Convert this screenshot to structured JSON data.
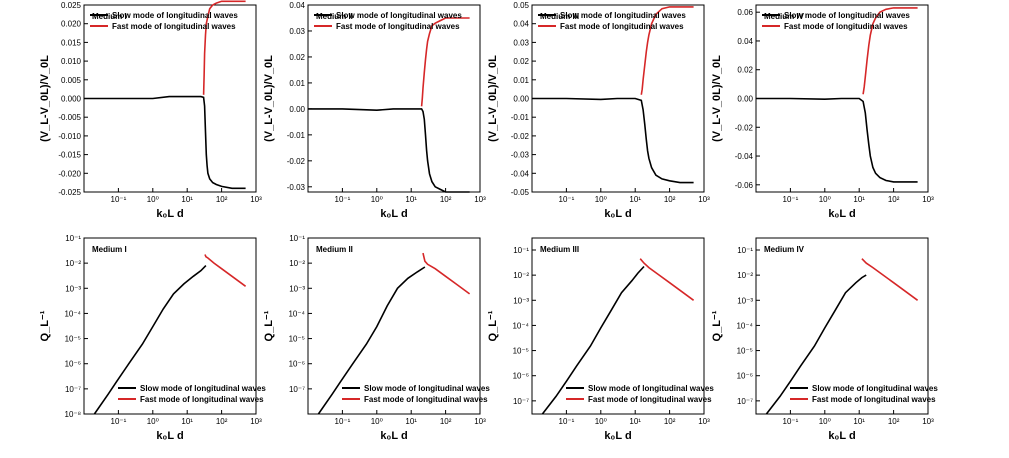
{
  "figure": {
    "x_axis_label": "k₀L d",
    "top_y_label": "(V_L-V_0L)/V_0L",
    "bottom_y_label": "Q_L⁻¹"
  },
  "legend": {
    "slow": "Slow mode of longitudinal waves",
    "fast": "Fast mode of longitudinal waves",
    "slow_color": "#000000",
    "fast_color": "#d62728"
  },
  "chart_data": [
    {
      "type": "line",
      "panel": "top-1",
      "medium": "Medium I",
      "xscale": "log",
      "xlim": [
        0.01,
        1000
      ],
      "xticks": [
        {
          "v": 0.1,
          "label": "10⁻¹"
        },
        {
          "v": 1,
          "label": "10⁰"
        },
        {
          "v": 10,
          "label": "10¹"
        },
        {
          "v": 100,
          "label": "10²"
        },
        {
          "v": 1000,
          "label": "10³"
        }
      ],
      "ylim": [
        -0.025,
        0.025
      ],
      "yticks": [
        "0.025",
        "0.020",
        "0.015",
        "0.010",
        "0.005",
        "0.000",
        "-0.005",
        "-0.010",
        "-0.015",
        "-0.020",
        "-0.025"
      ],
      "legend_position": "top-right",
      "series": [
        {
          "name": "Slow mode of longitudinal waves",
          "x": [
            0.01,
            0.1,
            1,
            3,
            10,
            25,
            30,
            32,
            34,
            36,
            38,
            40,
            45,
            55,
            70,
            100,
            200,
            500
          ],
          "y": [
            0,
            0,
            0,
            0.0005,
            0.0005,
            0.0005,
            0.0003,
            -0.002,
            -0.009,
            -0.015,
            -0.018,
            -0.02,
            -0.0215,
            -0.0225,
            -0.023,
            -0.0235,
            -0.024,
            -0.024
          ]
        },
        {
          "name": "Fast mode of longitudinal waves",
          "x": [
            30,
            31,
            32,
            34,
            36,
            40,
            45,
            55,
            70,
            100,
            200,
            500
          ],
          "y": [
            0.001,
            0.006,
            0.012,
            0.017,
            0.02,
            0.022,
            0.024,
            0.025,
            0.0255,
            0.026,
            0.026,
            0.026
          ]
        }
      ]
    },
    {
      "type": "line",
      "panel": "top-2",
      "medium": "Medium II",
      "xscale": "log",
      "xlim": [
        0.01,
        1000
      ],
      "xticks": [
        {
          "v": 0.1,
          "label": "10⁻¹"
        },
        {
          "v": 1,
          "label": "10⁰"
        },
        {
          "v": 10,
          "label": "10¹"
        },
        {
          "v": 100,
          "label": "10²"
        },
        {
          "v": 1000,
          "label": "10³"
        }
      ],
      "ylim": [
        -0.032,
        0.04
      ],
      "yticks": [
        "0.04",
        "0.03",
        "0.02",
        "0.01",
        "0.00",
        "-0.01",
        "-0.02",
        "-0.03"
      ],
      "legend_position": "top-right",
      "series": [
        {
          "name": "Slow mode of longitudinal waves",
          "x": [
            0.01,
            0.1,
            1,
            3,
            10,
            20,
            22,
            24,
            26,
            28,
            30,
            34,
            40,
            50,
            70,
            100,
            200,
            500
          ],
          "y": [
            0,
            0,
            -0.0005,
            0,
            0,
            0,
            -0.001,
            -0.004,
            -0.01,
            -0.016,
            -0.02,
            -0.025,
            -0.028,
            -0.03,
            -0.031,
            -0.032,
            -0.032,
            -0.032
          ]
        },
        {
          "name": "Fast mode of longitudinal waves",
          "x": [
            20,
            21,
            22,
            24,
            26,
            28,
            30,
            34,
            40,
            50,
            70,
            100,
            200,
            500
          ],
          "y": [
            0.001,
            0.004,
            0.008,
            0.014,
            0.019,
            0.023,
            0.026,
            0.029,
            0.032,
            0.033,
            0.034,
            0.035,
            0.035,
            0.035
          ]
        }
      ]
    },
    {
      "type": "line",
      "panel": "top-3",
      "medium": "Medium III",
      "xscale": "log",
      "xlim": [
        0.01,
        1000
      ],
      "xticks": [
        {
          "v": 0.1,
          "label": "10⁻¹"
        },
        {
          "v": 1,
          "label": "10⁰"
        },
        {
          "v": 10,
          "label": "10¹"
        },
        {
          "v": 100,
          "label": "10²"
        },
        {
          "v": 1000,
          "label": "10³"
        }
      ],
      "ylim": [
        -0.05,
        0.05
      ],
      "yticks": [
        "0.05",
        "0.04",
        "0.03",
        "0.02",
        "0.01",
        "0.00",
        "-0.01",
        "-0.02",
        "-0.03",
        "-0.04",
        "-0.05"
      ],
      "legend_position": "top-right",
      "series": [
        {
          "name": "Slow mode of longitudinal waves",
          "x": [
            0.01,
            0.1,
            1,
            3,
            10,
            15,
            17,
            19,
            21,
            23,
            25,
            30,
            40,
            60,
            100,
            200,
            500
          ],
          "y": [
            0,
            0,
            -0.0005,
            0,
            0,
            -0.001,
            -0.006,
            -0.014,
            -0.022,
            -0.028,
            -0.032,
            -0.037,
            -0.041,
            -0.043,
            -0.044,
            -0.045,
            -0.045
          ]
        },
        {
          "name": "Fast mode of longitudinal waves",
          "x": [
            15,
            16,
            17,
            19,
            21,
            23,
            25,
            30,
            40,
            60,
            100,
            200,
            500
          ],
          "y": [
            0.002,
            0.005,
            0.01,
            0.018,
            0.025,
            0.03,
            0.034,
            0.04,
            0.045,
            0.048,
            0.049,
            0.049,
            0.049
          ]
        }
      ]
    },
    {
      "type": "line",
      "panel": "top-4",
      "medium": "Medium IV",
      "xscale": "log",
      "xlim": [
        0.01,
        1000
      ],
      "xticks": [
        {
          "v": 0.1,
          "label": "10⁻¹"
        },
        {
          "v": 1,
          "label": "10⁰"
        },
        {
          "v": 10,
          "label": "10¹"
        },
        {
          "v": 100,
          "label": "10²"
        },
        {
          "v": 1000,
          "label": "10³"
        }
      ],
      "ylim": [
        -0.065,
        0.065
      ],
      "yticks": [
        "0.06",
        "0.04",
        "0.02",
        "0.00",
        "-0.02",
        "-0.04",
        "-0.06"
      ],
      "legend_position": "top-right",
      "series": [
        {
          "name": "Slow mode of longitudinal waves",
          "x": [
            0.01,
            0.1,
            1,
            3,
            10,
            13,
            15,
            17,
            19,
            21,
            25,
            30,
            40,
            60,
            100,
            200,
            500
          ],
          "y": [
            0,
            0,
            -0.0005,
            0,
            0,
            -0.002,
            -0.01,
            -0.022,
            -0.032,
            -0.04,
            -0.048,
            -0.052,
            -0.055,
            -0.057,
            -0.058,
            -0.058,
            -0.058
          ]
        },
        {
          "name": "Fast mode of longitudinal waves",
          "x": [
            13,
            14,
            15,
            17,
            19,
            21,
            25,
            30,
            40,
            60,
            100,
            200,
            500
          ],
          "y": [
            0.003,
            0.008,
            0.015,
            0.027,
            0.037,
            0.044,
            0.052,
            0.056,
            0.06,
            0.062,
            0.063,
            0.063,
            0.063
          ]
        }
      ]
    },
    {
      "type": "line",
      "panel": "bottom-1",
      "medium": "Medium I",
      "xscale": "log",
      "yscale": "log",
      "xlim": [
        0.01,
        1000
      ],
      "ylim": [
        1e-08,
        0.1
      ],
      "xticks": [
        {
          "v": 0.1,
          "label": "10⁻¹"
        },
        {
          "v": 1,
          "label": "10⁰"
        },
        {
          "v": 10,
          "label": "10¹"
        },
        {
          "v": 100,
          "label": "10²"
        },
        {
          "v": 1000,
          "label": "10³"
        }
      ],
      "yticks": [
        {
          "v": 0.1,
          "label": "10⁻¹"
        },
        {
          "v": 0.01,
          "label": "10⁻²"
        },
        {
          "v": 0.001,
          "label": "10⁻³"
        },
        {
          "v": 0.0001,
          "label": "10⁻⁴"
        },
        {
          "v": 1e-05,
          "label": "10⁻⁵"
        },
        {
          "v": 1e-06,
          "label": "10⁻⁶"
        },
        {
          "v": 1e-07,
          "label": "10⁻⁷"
        },
        {
          "v": 1e-08,
          "label": "10⁻⁸"
        }
      ],
      "legend_position": "bottom-right",
      "series": [
        {
          "name": "Slow mode of longitudinal waves",
          "x": [
            0.02,
            0.05,
            0.1,
            0.2,
            0.5,
            1,
            2,
            4,
            8,
            15,
            25,
            35
          ],
          "y": [
            1e-08,
            6e-08,
            2.5e-07,
            1e-06,
            6e-06,
            3e-05,
            0.00015,
            0.0006,
            0.0015,
            0.003,
            0.005,
            0.008
          ]
        },
        {
          "name": "Fast mode of longitudinal waves",
          "x": [
            33,
            35,
            40,
            60,
            100,
            200,
            500
          ],
          "y": [
            0.022,
            0.018,
            0.016,
            0.01,
            0.006,
            0.003,
            0.0012
          ]
        }
      ]
    },
    {
      "type": "line",
      "panel": "bottom-2",
      "medium": "Medium II",
      "xscale": "log",
      "yscale": "log",
      "xlim": [
        0.01,
        1000
      ],
      "ylim": [
        1e-08,
        0.1
      ],
      "xticks": [
        {
          "v": 0.1,
          "label": "10⁻¹"
        },
        {
          "v": 1,
          "label": "10⁰"
        },
        {
          "v": 10,
          "label": "10¹"
        },
        {
          "v": 100,
          "label": "10²"
        },
        {
          "v": 1000,
          "label": "10³"
        }
      ],
      "yticks": [
        {
          "v": 0.1,
          "label": "10⁻¹"
        },
        {
          "v": 0.01,
          "label": "10⁻²"
        },
        {
          "v": 0.001,
          "label": "10⁻³"
        },
        {
          "v": 0.0001,
          "label": "10⁻⁴"
        },
        {
          "v": 1e-05,
          "label": "10⁻⁵"
        },
        {
          "v": 1e-06,
          "label": "10⁻⁶"
        },
        {
          "v": 1e-07,
          "label": "10⁻⁷"
        }
      ],
      "legend_position": "bottom-right",
      "series": [
        {
          "name": "Slow mode of longitudinal waves",
          "x": [
            0.02,
            0.05,
            0.1,
            0.2,
            0.5,
            1,
            2,
            4,
            8,
            15,
            25
          ],
          "y": [
            1e-08,
            6e-08,
            2.5e-07,
            1e-06,
            6e-06,
            3e-05,
            0.0002,
            0.001,
            0.0025,
            0.0045,
            0.007
          ]
        },
        {
          "name": "Fast mode of longitudinal waves",
          "x": [
            22,
            25,
            30,
            50,
            100,
            200,
            500
          ],
          "y": [
            0.025,
            0.012,
            0.009,
            0.006,
            0.003,
            0.0015,
            0.0006
          ]
        }
      ]
    },
    {
      "type": "line",
      "panel": "bottom-3",
      "medium": "Medium III",
      "xscale": "log",
      "yscale": "log",
      "xlim": [
        0.01,
        1000
      ],
      "ylim": [
        3e-08,
        0.3
      ],
      "xticks": [
        {
          "v": 0.1,
          "label": "10⁻¹"
        },
        {
          "v": 1,
          "label": "10⁰"
        },
        {
          "v": 10,
          "label": "10¹"
        },
        {
          "v": 100,
          "label": "10²"
        },
        {
          "v": 1000,
          "label": "10³"
        }
      ],
      "yticks": [
        {
          "v": 0.1,
          "label": "10⁻¹"
        },
        {
          "v": 0.01,
          "label": "10⁻²"
        },
        {
          "v": 0.001,
          "label": "10⁻³"
        },
        {
          "v": 0.0001,
          "label": "10⁻⁴"
        },
        {
          "v": 1e-05,
          "label": "10⁻⁵"
        },
        {
          "v": 1e-06,
          "label": "10⁻⁶"
        },
        {
          "v": 1e-07,
          "label": "10⁻⁷"
        }
      ],
      "legend_position": "bottom-right",
      "series": [
        {
          "name": "Slow mode of longitudinal waves",
          "x": [
            0.02,
            0.05,
            0.1,
            0.2,
            0.5,
            1,
            2,
            4,
            8,
            12,
            18
          ],
          "y": [
            3e-08,
            1.5e-07,
            6e-07,
            2.5e-06,
            1.5e-05,
            8e-05,
            0.0004,
            0.002,
            0.006,
            0.012,
            0.022
          ]
        },
        {
          "name": "Fast mode of longitudinal waves",
          "x": [
            14,
            18,
            25,
            50,
            100,
            200,
            500
          ],
          "y": [
            0.045,
            0.03,
            0.02,
            0.01,
            0.005,
            0.0025,
            0.001
          ]
        }
      ]
    },
    {
      "type": "line",
      "panel": "bottom-4",
      "medium": "Medium IV",
      "xscale": "log",
      "yscale": "log",
      "xlim": [
        0.01,
        1000
      ],
      "ylim": [
        3e-08,
        0.3
      ],
      "xticks": [
        {
          "v": 0.1,
          "label": "10⁻¹"
        },
        {
          "v": 1,
          "label": "10⁰"
        },
        {
          "v": 10,
          "label": "10¹"
        },
        {
          "v": 100,
          "label": "10²"
        },
        {
          "v": 1000,
          "label": "10³"
        }
      ],
      "yticks": [
        {
          "v": 0.1,
          "label": "10⁻¹"
        },
        {
          "v": 0.01,
          "label": "10⁻²"
        },
        {
          "v": 0.001,
          "label": "10⁻³"
        },
        {
          "v": 0.0001,
          "label": "10⁻⁴"
        },
        {
          "v": 1e-05,
          "label": "10⁻⁵"
        },
        {
          "v": 1e-06,
          "label": "10⁻⁶"
        },
        {
          "v": 1e-07,
          "label": "10⁻⁷"
        }
      ],
      "legend_position": "bottom-right",
      "series": [
        {
          "name": "Slow mode of longitudinal waves",
          "x": [
            0.02,
            0.05,
            0.1,
            0.2,
            0.5,
            1,
            2,
            4,
            8,
            12,
            16
          ],
          "y": [
            3e-08,
            1.5e-07,
            6e-07,
            2.5e-06,
            1.5e-05,
            8e-05,
            0.0004,
            0.002,
            0.005,
            0.008,
            0.01
          ]
        },
        {
          "name": "Fast mode of longitudinal waves",
          "x": [
            12,
            16,
            25,
            50,
            100,
            200,
            500
          ],
          "y": [
            0.045,
            0.03,
            0.02,
            0.01,
            0.005,
            0.0025,
            0.001
          ]
        }
      ]
    }
  ]
}
